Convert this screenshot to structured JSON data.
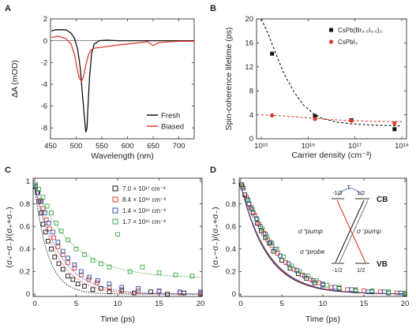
{
  "figure": {
    "panel_labels": [
      "A",
      "B",
      "C",
      "D"
    ]
  },
  "chart_data": [
    {
      "panel": "A",
      "type": "line",
      "xlabel": "Wavelength (nm)",
      "ylabel": "ΔA (mOD)",
      "xlim": [
        450,
        730
      ],
      "ylim": [
        -9,
        2
      ],
      "xticks": [
        450,
        500,
        550,
        600,
        650,
        700
      ],
      "yticks": [
        -8,
        -6,
        -4,
        -2,
        0,
        2
      ],
      "zero_line": true,
      "legend": "bottom-right",
      "series": [
        {
          "name": "Fresh",
          "color": "#111111",
          "x": [
            452,
            460,
            470,
            480,
            490,
            497,
            503,
            508,
            512,
            516,
            519,
            521,
            523,
            526,
            530,
            535,
            545,
            560,
            580,
            620,
            680,
            730
          ],
          "y": [
            0.9,
            1.0,
            1.0,
            1.0,
            0.7,
            0.2,
            -0.8,
            -2.5,
            -4.8,
            -7.0,
            -8.4,
            -8.0,
            -6.0,
            -3.4,
            -1.2,
            -0.3,
            0.0,
            0.05,
            0.0,
            0.0,
            0.0,
            0.0
          ]
        },
        {
          "name": "Biased",
          "color": "#e03a30",
          "x": [
            452,
            465,
            480,
            490,
            497,
            502,
            506,
            510,
            513,
            516,
            520,
            524,
            528,
            533,
            540,
            550,
            565,
            580,
            600,
            620,
            640,
            650,
            660,
            680,
            700,
            730
          ],
          "y": [
            0.3,
            0.4,
            0.2,
            -0.3,
            -1.3,
            -2.6,
            -3.4,
            -3.7,
            -3.5,
            -2.9,
            -2.0,
            -1.3,
            -0.9,
            -0.7,
            -0.65,
            -0.6,
            -0.5,
            -0.4,
            -0.3,
            -0.2,
            -0.1,
            -0.45,
            -0.2,
            -0.1,
            -0.05,
            -0.05
          ]
        }
      ]
    },
    {
      "panel": "B",
      "type": "scatter",
      "xlabel": "Carrier density (cm⁻³)",
      "ylabel": "Spin-coherence lifetime (ps)",
      "xscale": "log",
      "xlim": [
        1000000000000000.0,
        1e+18
      ],
      "ylim": [
        0,
        20
      ],
      "xtick_values": [
        1000000000000000.0,
        1e+16,
        1e+17,
        1e+18
      ],
      "xtick_labels": [
        "10¹⁵",
        "10¹⁶",
        "10¹⁷",
        "10¹⁸"
      ],
      "yticks": [
        0,
        4,
        8,
        12,
        16,
        20
      ],
      "legend": "top-right",
      "series": [
        {
          "name": "CsPb(Br₀.₅I₀.₅)₃",
          "color": "#111111",
          "marker": "square",
          "x": [
            1700000000000000.0,
            1.4e+16,
            8.4e+16,
            7e+17
          ],
          "y": [
            14.2,
            3.8,
            3.1,
            1.6
          ],
          "fit": {
            "x": [
              1000000000000000.0,
              1400000000000000.0,
              2000000000000000.0,
              3000000000000000.0,
              5000000000000000.0,
              8000000000000000.0,
              1.3e+16,
              2e+16,
              4e+16,
              8e+16,
              2e+17,
              5e+17,
              1e+18
            ],
            "y": [
              20.0,
              17.5,
              14.4,
              11.0,
              7.8,
              5.6,
              4.2,
              3.4,
              2.8,
              2.5,
              2.3,
              2.2,
              2.15
            ]
          }
        },
        {
          "name": "CsPbI₃",
          "color": "#e03a30",
          "marker": "circle",
          "x": [
            1700000000000000.0,
            1.4e+16,
            8.4e+16,
            7e+17
          ],
          "y": [
            3.9,
            3.3,
            3.0,
            2.6
          ],
          "fit": {
            "x": [
              1000000000000000.0,
              3000000000000000.0,
              1e+16,
              3e+16,
              1e+17,
              3e+17,
              1e+18
            ],
            "y": [
              4.0,
              3.8,
              3.5,
              3.2,
              3.0,
              2.9,
              2.85
            ]
          }
        }
      ]
    },
    {
      "panel": "C",
      "type": "scatter",
      "xlabel": "Time (ps)",
      "ylabel": "(σ₊−σ₋)/(σ₊+σ₋)",
      "xlim": [
        0,
        20
      ],
      "ylim": [
        0,
        1.0
      ],
      "xticks": [
        0,
        5,
        10,
        15,
        20
      ],
      "yticks": [
        0.0,
        0.2,
        0.4,
        0.6,
        0.8,
        1.0
      ],
      "legend": "top-right",
      "series": [
        {
          "name": "7.0 × 10¹⁷ cm⁻³",
          "color": "#111111",
          "x": [
            0.1,
            0.3,
            0.5,
            0.8,
            1.0,
            1.3,
            1.6,
            2.0,
            2.4,
            2.9,
            3.4,
            4.0,
            4.6,
            5.2,
            6.0,
            7.0,
            8.0,
            9.0,
            10.5,
            12,
            14,
            16,
            18,
            20
          ],
          "y": [
            0.95,
            0.9,
            0.82,
            0.72,
            0.62,
            0.55,
            0.47,
            0.4,
            0.33,
            0.27,
            0.22,
            0.16,
            0.13,
            0.09,
            0.07,
            0.04,
            0.05,
            0.02,
            0.03,
            0.01,
            0.02,
            0.0,
            0.01,
            0.0
          ],
          "fit": {
            "tau": 1.6,
            "offset": 0.0,
            "amp": 0.95
          }
        },
        {
          "name": "8.4 × 10¹⁶ cm⁻³",
          "color": "#e03a30",
          "x": [
            0.1,
            0.4,
            0.7,
            1.0,
            1.4,
            1.8,
            2.3,
            2.8,
            3.4,
            4.0,
            4.8,
            5.6,
            6.5,
            7.5,
            9.0,
            10.5,
            12.5,
            15,
            17.5,
            20
          ],
          "y": [
            0.97,
            0.9,
            0.83,
            0.76,
            0.66,
            0.58,
            0.5,
            0.42,
            0.35,
            0.28,
            0.23,
            0.17,
            0.13,
            0.1,
            0.06,
            0.04,
            0.03,
            0.02,
            0.01,
            0.01
          ],
          "fit": {
            "tau": 2.6,
            "offset": 0.0,
            "amp": 0.97
          }
        },
        {
          "name": "1.4 × 10¹⁶ cm⁻³",
          "color": "#2f4fb0",
          "x": [
            0.1,
            0.4,
            0.8,
            1.2,
            1.7,
            2.2,
            2.8,
            3.4,
            4.0,
            4.8,
            5.6,
            6.6,
            7.6,
            9.0,
            10.5,
            12.5,
            15,
            17.5,
            20
          ],
          "y": [
            0.96,
            0.9,
            0.82,
            0.72,
            0.63,
            0.55,
            0.46,
            0.38,
            0.32,
            0.26,
            0.2,
            0.15,
            0.12,
            0.09,
            0.06,
            0.05,
            0.03,
            0.02,
            0.02
          ],
          "fit": {
            "tau": 3.0,
            "offset": 0.0,
            "amp": 0.96
          }
        },
        {
          "name": "1.7 × 10¹⁵ cm⁻³",
          "color": "#3fa84a",
          "x": [
            0.1,
            0.5,
            1.0,
            1.5,
            2.0,
            2.6,
            3.2,
            4.0,
            5.0,
            6.0,
            7.0,
            8.0,
            9.0,
            10.0,
            11.5,
            13,
            15,
            17,
            19
          ],
          "y": [
            0.97,
            0.93,
            0.86,
            0.78,
            0.72,
            0.63,
            0.56,
            0.48,
            0.4,
            0.35,
            0.3,
            0.27,
            0.24,
            0.53,
            0.2,
            0.24,
            0.19,
            0.17,
            0.16
          ],
          "fit": {
            "tau": 4.5,
            "offset": 0.14,
            "amp": 0.83
          }
        }
      ]
    },
    {
      "panel": "D",
      "type": "scatter",
      "xlabel": "Time (ps)",
      "ylabel": "(σ₊−σ₋)/(σ₊+σ₋)",
      "xlim": [
        0,
        20
      ],
      "ylim": [
        0,
        1.0
      ],
      "xticks": [
        0,
        5,
        10,
        15,
        20
      ],
      "yticks": [
        0.0,
        0.2,
        0.4,
        0.6,
        0.8,
        1.0
      ],
      "series_note": "same four carrier densities as panel C, collapsed onto one curve",
      "series": [
        {
          "color": "#111111",
          "x": [
            0.1,
            0.5,
            1,
            1.5,
            2,
            2.5,
            3,
            3.5,
            4,
            5,
            6,
            7,
            8,
            9,
            10,
            12,
            14,
            16,
            18,
            20
          ],
          "y": [
            0.97,
            0.88,
            0.8,
            0.72,
            0.63,
            0.56,
            0.5,
            0.45,
            0.38,
            0.3,
            0.23,
            0.18,
            0.14,
            0.1,
            0.08,
            0.05,
            0.03,
            0.02,
            0.01,
            0.0
          ]
        },
        {
          "color": "#e03a30",
          "x": [
            0.2,
            0.7,
            1.2,
            1.7,
            2.2,
            2.8,
            3.3,
            3.8,
            4.5,
            5.5,
            6.5,
            7.5,
            8.5,
            9.5,
            11,
            13,
            15,
            17,
            19
          ],
          "y": [
            0.95,
            0.86,
            0.77,
            0.7,
            0.62,
            0.54,
            0.48,
            0.43,
            0.36,
            0.28,
            0.22,
            0.17,
            0.13,
            0.1,
            0.06,
            0.04,
            0.03,
            0.02,
            0.01
          ]
        },
        {
          "color": "#2f4fb0",
          "x": [
            0.3,
            0.8,
            1.3,
            1.9,
            2.4,
            3.0,
            3.6,
            4.2,
            4.8,
            5.8,
            6.8,
            7.8,
            8.8,
            10,
            11.5,
            13.5,
            15.5,
            17.5,
            19.5
          ],
          "y": [
            0.94,
            0.84,
            0.76,
            0.67,
            0.6,
            0.53,
            0.46,
            0.4,
            0.34,
            0.27,
            0.21,
            0.16,
            0.12,
            0.09,
            0.06,
            0.04,
            0.02,
            0.02,
            0.01
          ]
        },
        {
          "color": "#3fa84a",
          "x": [
            0.2,
            0.9,
            1.4,
            2.0,
            2.6,
            3.2,
            3.8,
            4.4,
            5.2,
            6.2,
            7.2,
            8.2,
            9.2,
            10.5,
            12,
            14,
            16,
            18,
            20
          ],
          "y": [
            0.96,
            0.83,
            0.75,
            0.66,
            0.58,
            0.51,
            0.45,
            0.4,
            0.33,
            0.25,
            0.2,
            0.16,
            0.12,
            0.08,
            0.06,
            0.04,
            0.03,
            0.02,
            0.01
          ]
        }
      ],
      "fit": {
        "tau": 3.2,
        "amp": 0.97,
        "colors": [
          "#111111",
          "#e03a30",
          "#2f4fb0"
        ]
      },
      "inset": {
        "levels": {
          "cb_label": "CB",
          "vb_label": "VB",
          "cb_left": "-1/2",
          "cb_right": "1/2",
          "vb_left": "-1/2",
          "vb_right": "1/2"
        },
        "tau_label": "τ",
        "arrows": [
          {
            "label": "σ⁺pump",
            "color": "#111111"
          },
          {
            "label": "σ⁻pump",
            "color": "#e03a30"
          },
          {
            "label": "σ⁺probe",
            "color": "#111111"
          }
        ]
      }
    }
  ]
}
